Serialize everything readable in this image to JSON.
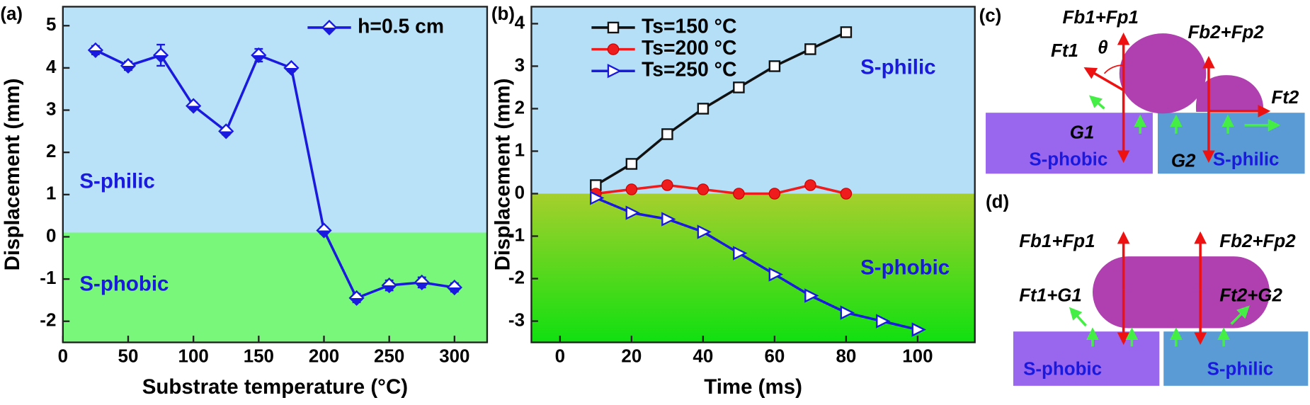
{
  "chart_data": [
    {
      "type": "line",
      "panel_label": "(a)",
      "x_label": "Substrate temperature (°C)",
      "y_label": "Displacement (mm)",
      "xlim": [
        0,
        325
      ],
      "ylim": [
        -2.5,
        5.45
      ],
      "xticks": [
        0,
        50,
        100,
        150,
        200,
        250,
        300
      ],
      "yticks": [
        -2,
        -1,
        0,
        1,
        2,
        3,
        4,
        5
      ],
      "legend_loc": "upper right",
      "regions": [
        {
          "label": "S-philic",
          "from": 0.1,
          "to": 5.45,
          "color": "#b9e2f9"
        },
        {
          "label": "S-phobic",
          "from": -2.5,
          "to": 0.1,
          "color": "#78f77a"
        }
      ],
      "x": [
        25,
        50,
        75,
        100,
        125,
        150,
        175,
        200,
        225,
        250,
        275,
        300
      ],
      "series": [
        {
          "name": "h=0.5 cm",
          "color": "#1a1adf",
          "marker": "diamond",
          "values": [
            4.42,
            4.05,
            4.3,
            3.1,
            2.5,
            4.3,
            4.0,
            0.15,
            -1.45,
            -1.15,
            -1.08,
            -1.2
          ],
          "errors": [
            0.1,
            0.1,
            0.25,
            0.08,
            0.08,
            0.15,
            0.08,
            0.08,
            0.1,
            0.12,
            0.12,
            0.1
          ]
        }
      ]
    },
    {
      "type": "line",
      "panel_label": "(b)",
      "x_label": "Time (ms)",
      "y_label": "Displacement (mm)",
      "xlim": [
        -8,
        116
      ],
      "ylim": [
        -3.5,
        4.4
      ],
      "xticks": [
        0,
        20,
        40,
        60,
        80,
        100
      ],
      "yticks": [
        -3,
        -2,
        -1,
        0,
        1,
        2,
        3,
        4
      ],
      "legend_loc": "upper left",
      "regions": [
        {
          "label": "S-philic",
          "from": 0,
          "to": 4.4,
          "color": "#b4dff6"
        },
        {
          "label": "S-phobic",
          "from": -3.5,
          "to": 0,
          "color": [
            "#a6cf2c",
            "#10e010"
          ]
        }
      ],
      "series": [
        {
          "name": "Ts=150 °C",
          "color": "#111111",
          "marker": "square",
          "x": [
            10,
            20,
            30,
            40,
            50,
            60,
            70,
            80
          ],
          "values": [
            0.2,
            0.7,
            1.4,
            2.0,
            2.5,
            3.0,
            3.4,
            3.8
          ]
        },
        {
          "name": "Ts=200 °C",
          "color": "#ee1c1c",
          "marker": "circle",
          "x": [
            10,
            20,
            30,
            40,
            50,
            60,
            70,
            80
          ],
          "values": [
            0,
            0.1,
            0.2,
            0.1,
            0,
            0,
            0.2,
            0
          ]
        },
        {
          "name": "Ts=250 °C",
          "color": "#1a1adf",
          "marker": "triangle-right",
          "x": [
            10,
            20,
            30,
            40,
            50,
            60,
            70,
            80,
            90,
            100
          ],
          "values": [
            -0.1,
            -0.45,
            -0.6,
            -0.9,
            -1.4,
            -1.9,
            -2.4,
            -2.8,
            -3.0,
            -3.2
          ]
        }
      ]
    }
  ],
  "diagrams": {
    "c": {
      "panel_label": "(c)",
      "labels": [
        "Fb1+Fp1",
        "θ",
        "Ft1",
        "Fb2+Fp2",
        "Ft2",
        "G1",
        "G2"
      ],
      "left_surface": "S-phobic",
      "right_surface": "S-philic"
    },
    "d": {
      "panel_label": "(d)",
      "labels": [
        "Fb1+Fp1",
        "Fb2+Fp2",
        "Ft1+G1",
        "Ft2+G2"
      ],
      "left_surface": "S-phobic",
      "right_surface": "S-philic"
    }
  }
}
